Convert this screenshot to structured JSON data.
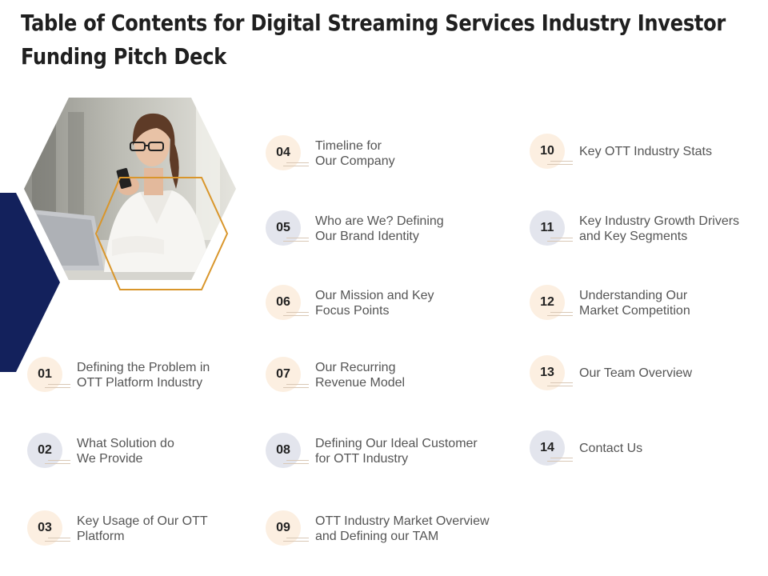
{
  "title": {
    "line1": "Table of Contents for Digital Streaming Services Industry Investor",
    "line2": "Funding Pitch Deck"
  },
  "colors": {
    "navy": "#13215c",
    "gold": "#d9962b",
    "beige_circle": "#fcefe1",
    "grey_circle": "#e3e5ed"
  },
  "items": [
    {
      "num": "01",
      "l1": "Defining the Problem in",
      "l2": "OTT Platform Industry"
    },
    {
      "num": "02",
      "l1": "What Solution do",
      "l2": "We Provide"
    },
    {
      "num": "03",
      "l1": "Key Usage of Our OTT",
      "l2": "Platform"
    },
    {
      "num": "04",
      "l1": "Timeline for",
      "l2": "Our Company"
    },
    {
      "num": "05",
      "l1": "Who are We? Defining",
      "l2": "Our Brand Identity"
    },
    {
      "num": "06",
      "l1": "Our Mission and Key",
      "l2": "Focus Points"
    },
    {
      "num": "07",
      "l1": "Our Recurring",
      "l2": "Revenue Model"
    },
    {
      "num": "08",
      "l1": "Defining Our Ideal Customer",
      "l2": "for OTT Industry"
    },
    {
      "num": "09",
      "l1": "OTT Industry  Market Overview",
      "l2": "and Defining our TAM"
    },
    {
      "num": "10",
      "l1": "Key OTT Industry  Stats",
      "l2": ""
    },
    {
      "num": "11",
      "l1": "Key Industry  Growth Drivers",
      "l2": "and Key Segments"
    },
    {
      "num": "12",
      "l1": "Understanding Our",
      "l2": "Market Competition"
    },
    {
      "num": "13",
      "l1": "Our Team Overview",
      "l2": ""
    },
    {
      "num": "14",
      "l1": "Contact Us",
      "l2": ""
    }
  ]
}
